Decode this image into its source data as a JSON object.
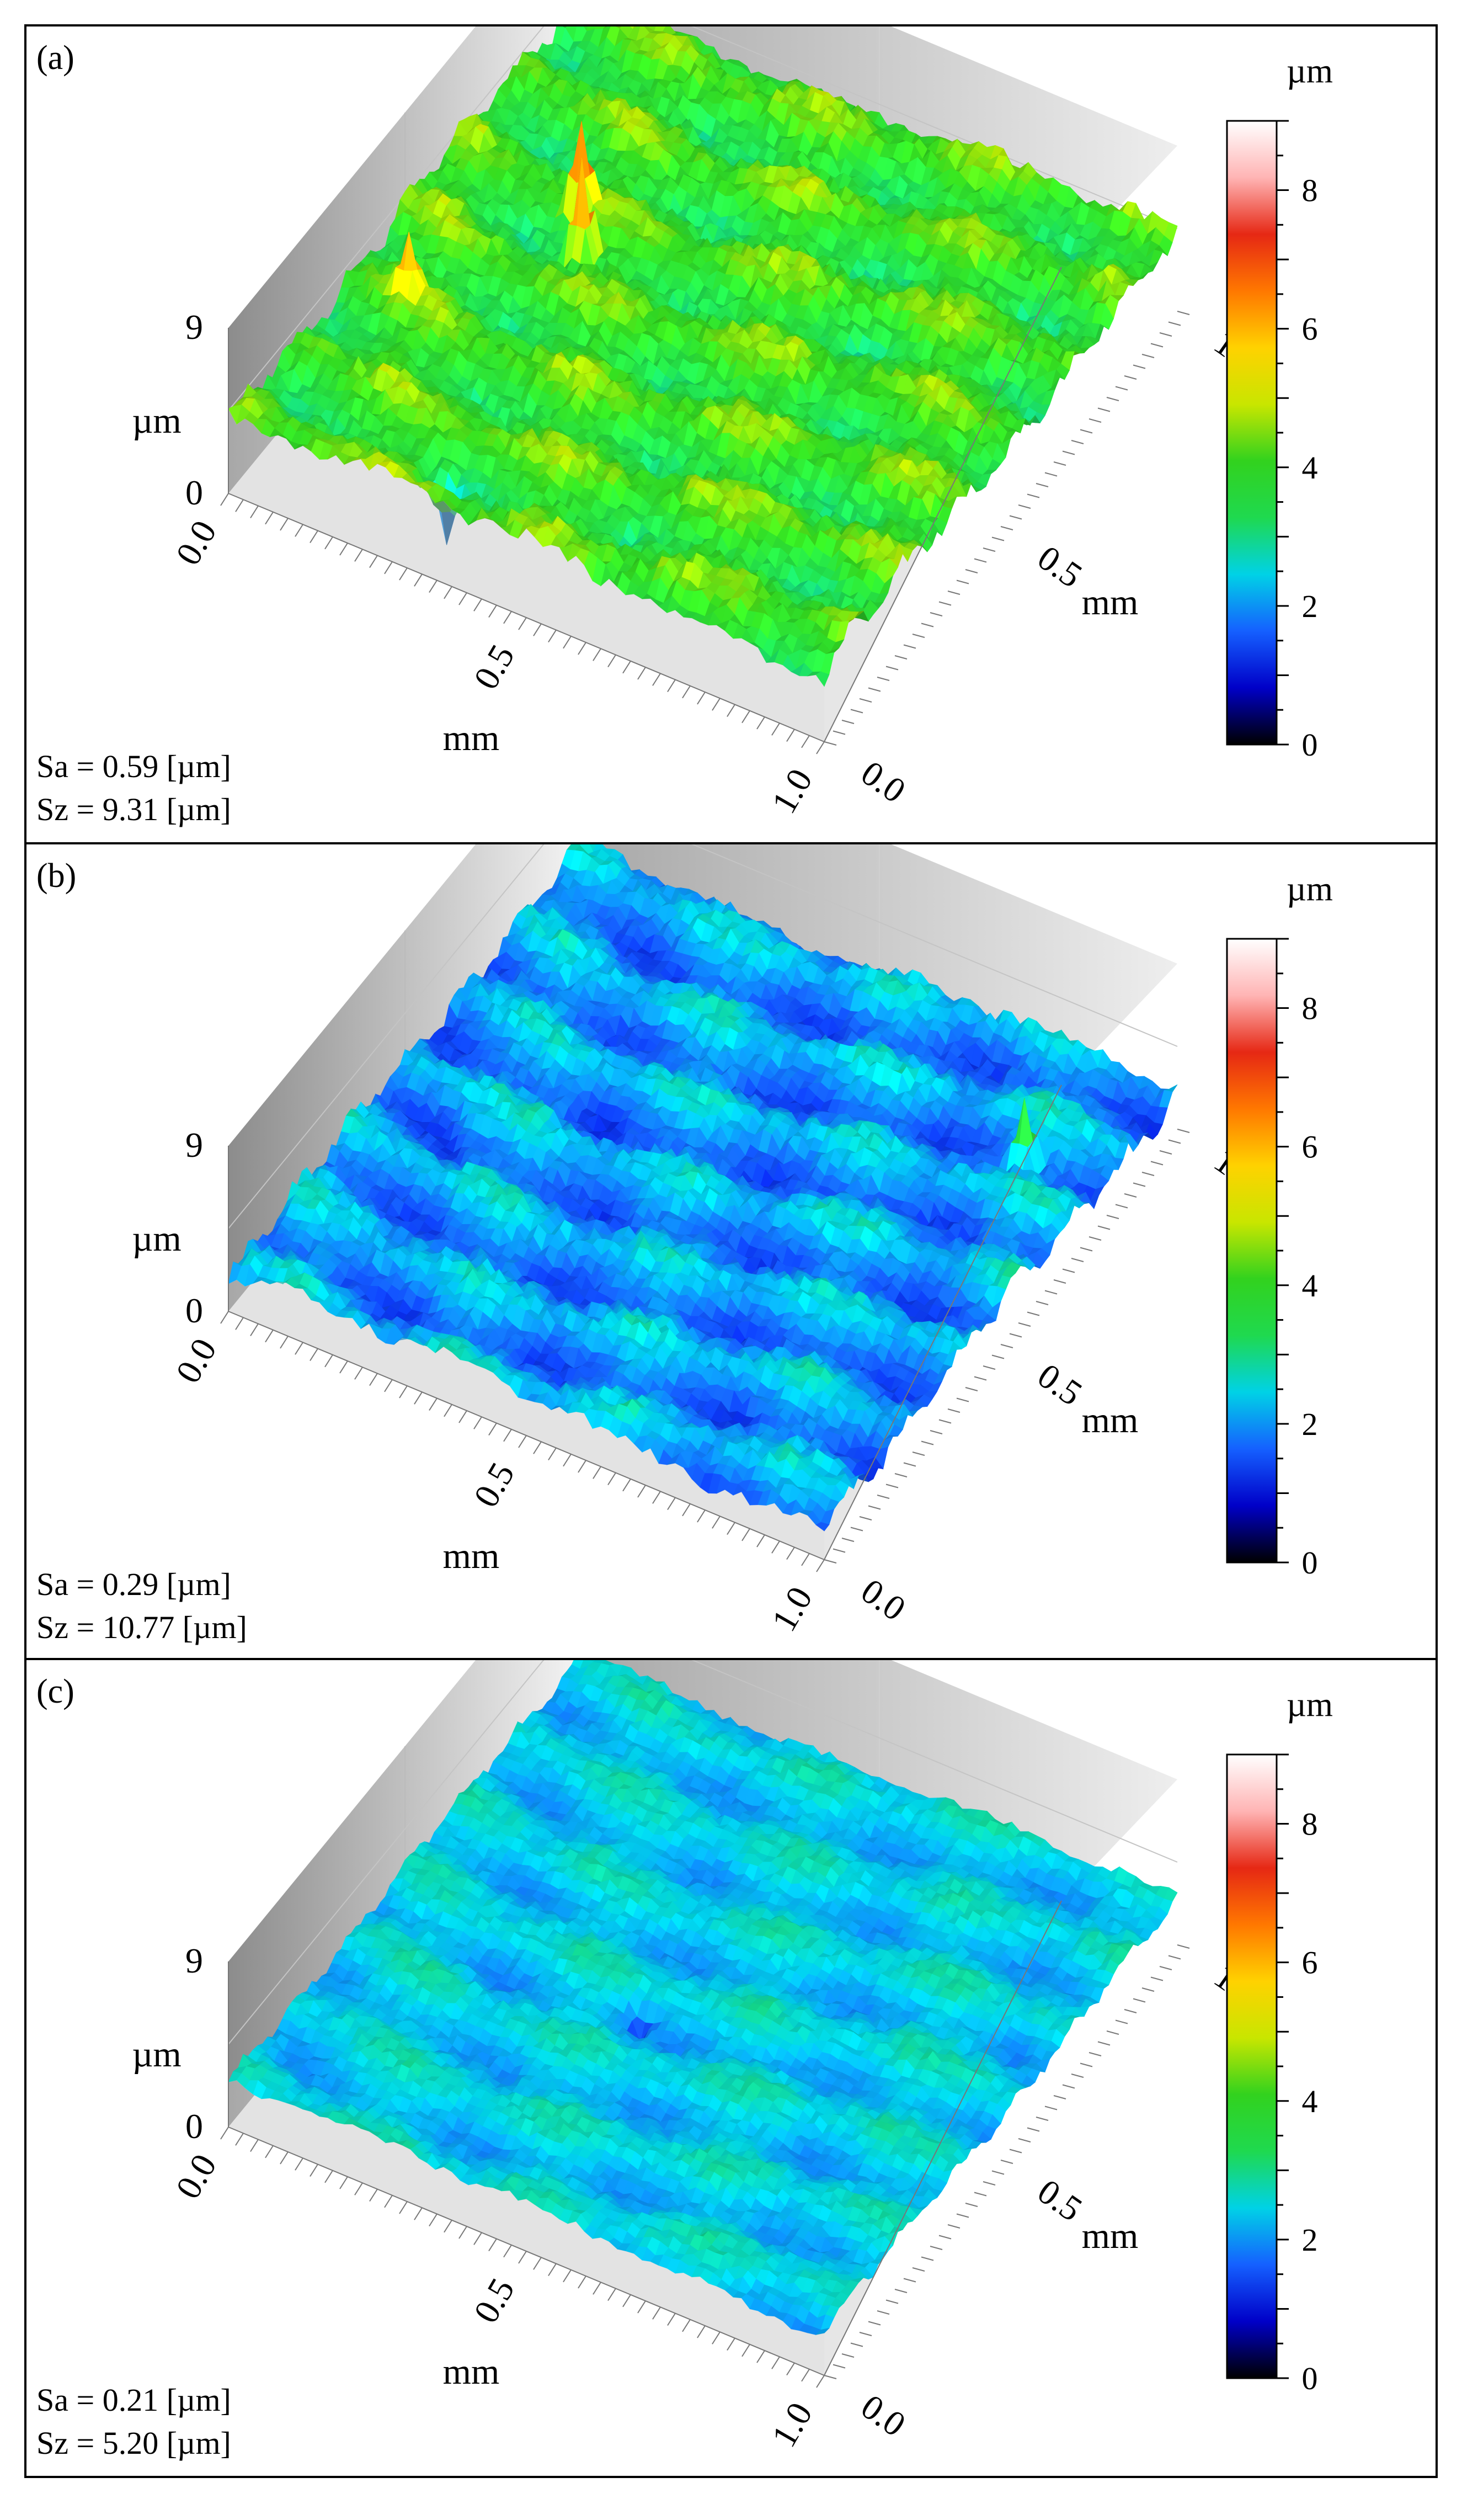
{
  "chart_data": [
    {
      "type": "surface",
      "panel_label": "(a)",
      "x_axis": {
        "label": "mm",
        "ticks": [
          "0.0",
          "0.5",
          "1.0"
        ],
        "range": [
          0.0,
          1.0
        ]
      },
      "y_axis": {
        "label": "mm",
        "ticks": [
          "0.0",
          "0.5",
          "1.0"
        ],
        "range": [
          0.0,
          1.0
        ]
      },
      "z_axis": {
        "label": "µm",
        "ticks": [
          "0",
          "9"
        ],
        "range": [
          0,
          9
        ]
      },
      "colorbar": {
        "label": "µm",
        "ticks": [
          "0",
          "2",
          "4",
          "6",
          "8"
        ],
        "range": [
          0,
          9
        ]
      },
      "mean_height": 3.9,
      "noise_amplitude": 0.9,
      "hue_bias": "green",
      "spikes": [
        {
          "x": 0.22,
          "y": 0.62,
          "z": 8.6
        },
        {
          "x": 0.27,
          "y": 0.55,
          "z": 8.8
        },
        {
          "x": 0.1,
          "y": 0.35,
          "z": 7.4
        }
      ],
      "pits": [
        {
          "x": 0.33,
          "y": 0.05,
          "z": 0.4
        }
      ],
      "stats": {
        "sa": "Sa = 0.59 [µm]",
        "sz": "Sz = 9.31 [µm]"
      }
    },
    {
      "type": "surface",
      "panel_label": "(b)",
      "x_axis": {
        "label": "mm",
        "ticks": [
          "0.0",
          "0.5",
          "1.0"
        ],
        "range": [
          0.0,
          1.0
        ]
      },
      "y_axis": {
        "label": "mm",
        "ticks": [
          "0.0",
          "0.5",
          "1.0"
        ],
        "range": [
          0.0,
          1.0
        ]
      },
      "z_axis": {
        "label": "µm",
        "ticks": [
          "0",
          "9"
        ],
        "range": [
          0,
          9
        ]
      },
      "colorbar": {
        "label": "µm",
        "ticks": [
          "0",
          "2",
          "4",
          "6",
          "8"
        ],
        "range": [
          0,
          9
        ]
      },
      "mean_height": 2.0,
      "noise_amplitude": 0.8,
      "hue_bias": "blue",
      "spikes": [
        {
          "x": 0.88,
          "y": 0.78,
          "z": 5.2
        }
      ],
      "pits": [],
      "stats": {
        "sa": "Sa = 0.29 [µm]",
        "sz": "Sz = 10.77 [µm]"
      }
    },
    {
      "type": "surface",
      "panel_label": "(c)",
      "x_axis": {
        "label": "mm",
        "ticks": [
          "0.0",
          "0.5",
          "1.0"
        ],
        "range": [
          0.0,
          1.0
        ]
      },
      "y_axis": {
        "label": "mm",
        "ticks": [
          "0.0",
          "0.5",
          "1.0"
        ],
        "range": [
          0.0,
          1.0
        ]
      },
      "z_axis": {
        "label": "µm",
        "ticks": [
          "0",
          "9"
        ],
        "range": [
          0,
          9
        ]
      },
      "colorbar": {
        "label": "µm",
        "ticks": [
          "0",
          "2",
          "4",
          "6",
          "8"
        ],
        "range": [
          0,
          9
        ]
      },
      "mean_height": 2.4,
      "noise_amplitude": 0.5,
      "hue_bias": "cyan",
      "spikes": [],
      "pits": [
        {
          "x": 0.45,
          "y": 0.42,
          "z": 0.8
        }
      ],
      "stats": {
        "sa": "Sa = 0.21 [µm]",
        "sz": "Sz = 5.20 [µm]"
      }
    }
  ],
  "colormap": [
    "#000000",
    "#0000c8",
    "#1560ff",
    "#00d2e6",
    "#1fd94f",
    "#32d21e",
    "#c8e600",
    "#ffd200",
    "#ff7800",
    "#e62814",
    "#ffb4b4",
    "#ffffff"
  ]
}
